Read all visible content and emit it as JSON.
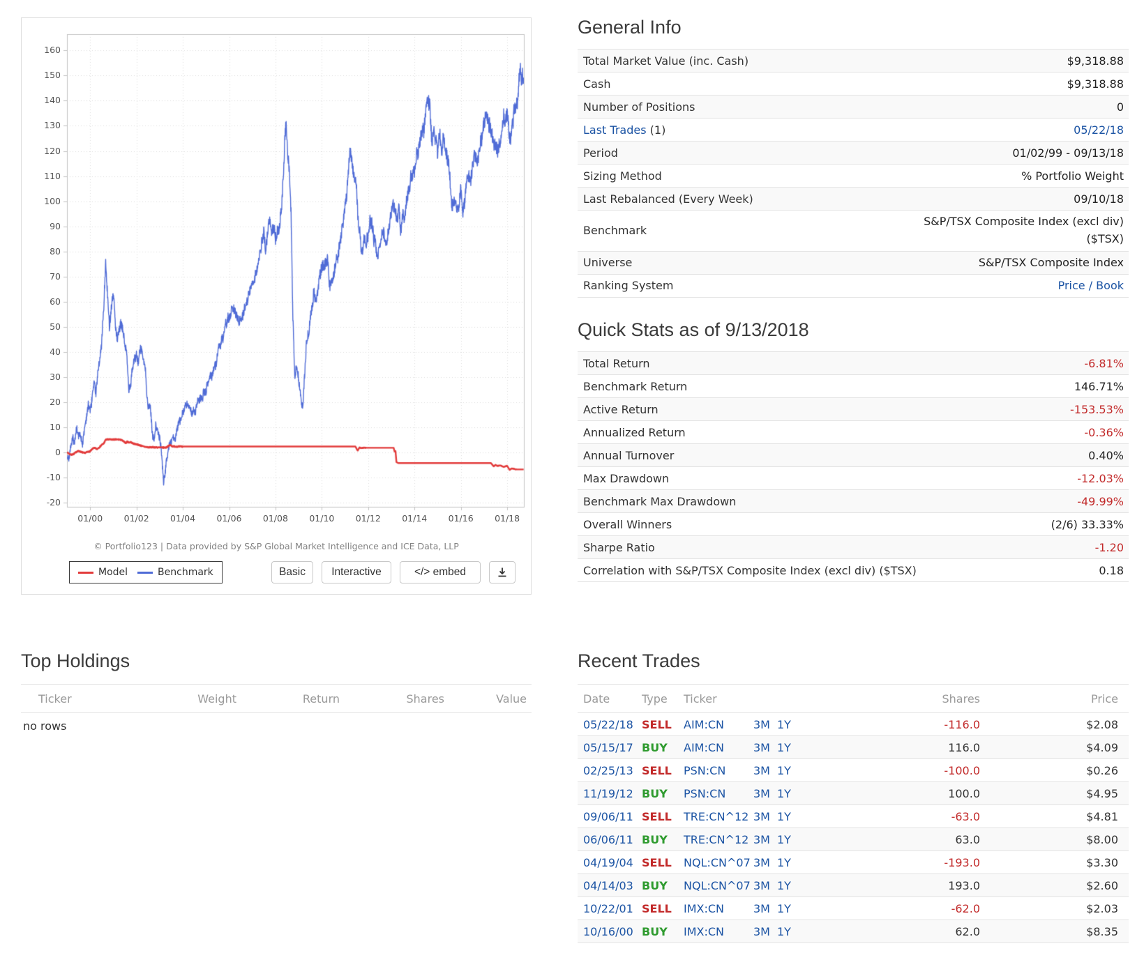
{
  "chart_panel": {
    "copyright": "© Portfolio123 | Data provided by S&P Global Market Intelligence and ICE Data, LLP",
    "legend": [
      {
        "label": "Model",
        "color": "#e23b3b"
      },
      {
        "label": "Benchmark",
        "color": "#4f6bd6"
      }
    ],
    "buttons": {
      "basic": "Basic",
      "interactive": "Interactive",
      "embed": "</> embed"
    }
  },
  "chart_data": {
    "type": "line",
    "title": "",
    "xlabel": "",
    "ylabel": "",
    "grid": true,
    "legend_position": "bottom-left",
    "y_ticks": [
      160,
      150,
      140,
      130,
      120,
      110,
      100,
      90,
      80,
      70,
      60,
      50,
      40,
      30,
      20,
      10,
      0,
      -10,
      -20
    ],
    "x_tick_labels": [
      "01/00",
      "01/02",
      "01/04",
      "01/06",
      "01/08",
      "01/10",
      "01/12",
      "01/14",
      "01/16",
      "01/18"
    ],
    "x_tick_years": [
      2000,
      2002,
      2004,
      2006,
      2008,
      2010,
      2012,
      2014,
      2016,
      2018
    ],
    "x_domain": [
      1999.0,
      2018.72
    ],
    "ylim": [
      -21.7,
      166.5
    ],
    "series": [
      {
        "name": "Model",
        "color": "#e23b3b",
        "x": [
          1999,
          1999.1,
          1999.2,
          1999.3,
          1999.42,
          1999.5,
          1999.6,
          1999.75,
          1999.9,
          2000,
          2000.15,
          2000.3,
          2000.42,
          2000.5,
          2000.58,
          2000.67,
          2000.75,
          2001,
          2001.25,
          2001.35,
          2001.45,
          2001.55,
          2001.6,
          2001.65,
          2001.75,
          2001.85,
          2002,
          2002.15,
          2002.3,
          2002.5,
          2002.75,
          2003,
          2003.28,
          2003.45,
          2003.55,
          2003.7,
          2004.3,
          2011.45,
          2011.55,
          2011.62,
          2011.7,
          2011.8,
          2013.1,
          2013.14,
          2013.18,
          2013.22,
          2013.3,
          2017.3,
          2017.42,
          2017.5,
          2017.58,
          2017.7,
          2017.85,
          2018,
          2018.1,
          2018.2,
          2018.3,
          2018.38,
          2018.71
        ],
        "y": [
          0,
          -0.6,
          -1,
          -0.6,
          0.3,
          0.5,
          0.2,
          -0.3,
          0.2,
          0.4,
          1.8,
          1.3,
          2.2,
          3,
          3.4,
          5,
          5.1,
          5.1,
          5.1,
          4.9,
          4.3,
          3.7,
          4.4,
          3.9,
          4.1,
          3.5,
          3.2,
          2.8,
          2.3,
          2,
          2,
          1.9,
          1.9,
          2.9,
          2.4,
          2.3,
          2.3,
          2.3,
          0.6,
          1.9,
          1.7,
          1.8,
          1.8,
          0.3,
          0.5,
          -3.9,
          -4.3,
          -4.3,
          -5.6,
          -5,
          -5.4,
          -5.2,
          -5.8,
          -5.4,
          -7,
          -6.4,
          -6.6,
          -6.81,
          -6.81
        ]
      },
      {
        "name": "Benchmark",
        "color": "#4f6bd6",
        "x": [
          1999,
          1999.08,
          1999.17,
          1999.25,
          1999.33,
          1999.42,
          1999.5,
          1999.58,
          1999.67,
          1999.75,
          1999.83,
          1999.92,
          2000,
          2000.08,
          2000.17,
          2000.25,
          2000.33,
          2000.42,
          2000.5,
          2000.58,
          2000.67,
          2000.75,
          2000.83,
          2000.92,
          2001,
          2001.08,
          2001.17,
          2001.25,
          2001.33,
          2001.42,
          2001.5,
          2001.58,
          2001.67,
          2001.75,
          2001.83,
          2001.92,
          2002,
          2002.08,
          2002.17,
          2002.25,
          2002.33,
          2002.42,
          2002.5,
          2002.58,
          2002.67,
          2002.75,
          2002.83,
          2002.92,
          2003,
          2003.08,
          2003.17,
          2003.25,
          2003.33,
          2003.42,
          2003.5,
          2003.58,
          2003.67,
          2003.75,
          2003.83,
          2003.92,
          2004,
          2004.17,
          2004.33,
          2004.5,
          2004.67,
          2004.83,
          2005,
          2005.17,
          2005.33,
          2005.5,
          2005.67,
          2005.83,
          2006,
          2006.17,
          2006.33,
          2006.5,
          2006.67,
          2006.83,
          2007,
          2007.17,
          2007.33,
          2007.5,
          2007.58,
          2007.67,
          2007.75,
          2007.83,
          2007.92,
          2008,
          2008.08,
          2008.17,
          2008.25,
          2008.33,
          2008.42,
          2008.46,
          2008.5,
          2008.58,
          2008.67,
          2008.75,
          2008.83,
          2008.92,
          2009,
          2009.08,
          2009.17,
          2009.25,
          2009.33,
          2009.42,
          2009.5,
          2009.58,
          2009.67,
          2009.75,
          2009.83,
          2009.92,
          2010,
          2010.17,
          2010.25,
          2010.33,
          2010.5,
          2010.67,
          2010.83,
          2010.92,
          2011,
          2011.08,
          2011.17,
          2011.25,
          2011.33,
          2011.42,
          2011.5,
          2011.58,
          2011.67,
          2011.75,
          2011.83,
          2011.92,
          2012,
          2012.08,
          2012.17,
          2012.25,
          2012.33,
          2012.42,
          2012.5,
          2012.58,
          2012.67,
          2012.75,
          2012.83,
          2012.92,
          2013,
          2013.08,
          2013.17,
          2013.25,
          2013.33,
          2013.42,
          2013.5,
          2013.58,
          2013.67,
          2013.75,
          2013.83,
          2013.92,
          2014,
          2014.08,
          2014.17,
          2014.25,
          2014.33,
          2014.42,
          2014.5,
          2014.58,
          2014.67,
          2014.75,
          2014.83,
          2014.92,
          2015,
          2015.08,
          2015.17,
          2015.25,
          2015.33,
          2015.42,
          2015.5,
          2015.58,
          2015.67,
          2015.75,
          2015.83,
          2015.92,
          2016,
          2016.08,
          2016.17,
          2016.25,
          2016.33,
          2016.42,
          2016.5,
          2016.58,
          2016.67,
          2016.75,
          2016.83,
          2016.92,
          2017,
          2017.08,
          2017.17,
          2017.25,
          2017.33,
          2017.42,
          2017.5,
          2017.58,
          2017.67,
          2017.75,
          2017.83,
          2017.92,
          2018,
          2018.08,
          2018.17,
          2018.25,
          2018.33,
          2018.42,
          2018.5,
          2018.58,
          2018.63,
          2018.67,
          2018.71
        ],
        "y": [
          0,
          -4,
          3,
          6,
          4,
          9,
          7,
          6,
          4,
          9,
          13,
          20,
          16,
          22,
          28,
          25,
          31,
          38,
          45,
          55,
          75,
          63,
          52,
          58,
          64,
          53,
          44,
          47,
          52,
          49,
          44,
          38,
          24,
          28,
          33,
          37,
          40,
          37,
          41,
          39,
          36,
          28,
          17,
          20,
          9,
          4,
          10,
          8,
          6,
          0,
          -12,
          -7,
          -2,
          2,
          4,
          7,
          5,
          9,
          11,
          14,
          16,
          19,
          17,
          16,
          20,
          22,
          25,
          29,
          33,
          39,
          45,
          49,
          54,
          58,
          54,
          52,
          57,
          63,
          68,
          72,
          80,
          88,
          80,
          86,
          94,
          87,
          90,
          83,
          90,
          88,
          97,
          108,
          125,
          132,
          120,
          113,
          98,
          55,
          30,
          33,
          28,
          22,
          16,
          30,
          42,
          47,
          52,
          58,
          64,
          61,
          67,
          70,
          72,
          75,
          78,
          68,
          70,
          77,
          86,
          92,
          98,
          104,
          118,
          121,
          113,
          109,
          106,
          92,
          84,
          78,
          86,
          82,
          88,
          93,
          90,
          86,
          80,
          77,
          82,
          86,
          89,
          85,
          87,
          90,
          95,
          100,
          97,
          92,
          96,
          88,
          93,
          95,
          99,
          103,
          108,
          112,
          110,
          117,
          120,
          123,
          126,
          130,
          135,
          141,
          136,
          122,
          129,
          123,
          118,
          126,
          121,
          125,
          123,
          116,
          112,
          101,
          96,
          101,
          98,
          97,
          104,
          95,
          99,
          108,
          112,
          110,
          114,
          116,
          117,
          120,
          122,
          127,
          130,
          132,
          133,
          130,
          127,
          124,
          122,
          120,
          123,
          127,
          131,
          134,
          138,
          128,
          125,
          131,
          137,
          140,
          146,
          153,
          148,
          152,
          146.7
        ]
      }
    ]
  },
  "general_info": {
    "title": "General Info",
    "rows": [
      {
        "label": "Total Market Value (inc. Cash)",
        "value": "$9,318.88"
      },
      {
        "label": "Cash",
        "value": "$9,318.88"
      },
      {
        "label": "Number of Positions",
        "value": "0"
      },
      {
        "label_link": "Last Trades",
        "label_suffix": " (1)",
        "value": "05/22/18"
      },
      {
        "label": "Period",
        "value": "01/02/99 - 09/13/18"
      },
      {
        "label": "Sizing Method",
        "value": "% Portfolio Weight"
      },
      {
        "label": "Last Rebalanced (Every Week)",
        "value": "09/10/18"
      },
      {
        "label": "Benchmark",
        "value_line1": "S&P/TSX Composite Index (excl div)",
        "value_line2": "($TSX)"
      },
      {
        "label": "Universe",
        "value": "S&P/TSX Composite Index"
      },
      {
        "label": "Ranking System",
        "value": "Price / Book"
      }
    ]
  },
  "quick_stats": {
    "title": "Quick Stats as of 9/13/2018",
    "rows": [
      {
        "label": "Total Return",
        "value": "-6.81%"
      },
      {
        "label": "Benchmark Return",
        "value": "146.71%"
      },
      {
        "label": "Active Return",
        "value": "-153.53%"
      },
      {
        "label": "Annualized Return",
        "value": "-0.36%"
      },
      {
        "label": "Annual Turnover",
        "value": "0.40%"
      },
      {
        "label": "Max Drawdown",
        "value": "-12.03%"
      },
      {
        "label": "Benchmark Max Drawdown",
        "value": "-49.99%"
      },
      {
        "label": "Overall Winners",
        "value": "(2/6) 33.33%"
      },
      {
        "label": "Sharpe Ratio",
        "value": "-1.20"
      },
      {
        "label": "Correlation with S&P/TSX Composite Index (excl div) ($TSX)",
        "value": "0.18"
      }
    ]
  },
  "top_holdings": {
    "title": "Top Holdings",
    "headers": [
      "Ticker",
      "Weight",
      "Return",
      "Shares",
      "Value"
    ],
    "empty_text": "no rows"
  },
  "recent_trades": {
    "title": "Recent Trades",
    "headers": {
      "date": "Date",
      "type": "Type",
      "ticker": "Ticker",
      "shares": "Shares",
      "price": "Price"
    },
    "rows": [
      {
        "date": "05/22/18",
        "type": "SELL",
        "ticker": "AIM:CN",
        "links": [
          "3M",
          "1Y"
        ],
        "shares": "-116.0",
        "price": "$2.08"
      },
      {
        "date": "05/15/17",
        "type": "BUY",
        "ticker": "AIM:CN",
        "links": [
          "3M",
          "1Y"
        ],
        "shares": "116.0",
        "price": "$4.09"
      },
      {
        "date": "02/25/13",
        "type": "SELL",
        "ticker": "PSN:CN",
        "links": [
          "3M",
          "1Y"
        ],
        "shares": "-100.0",
        "price": "$0.26"
      },
      {
        "date": "11/19/12",
        "type": "BUY",
        "ticker": "PSN:CN",
        "links": [
          "3M",
          "1Y"
        ],
        "shares": "100.0",
        "price": "$4.95"
      },
      {
        "date": "09/06/11",
        "type": "SELL",
        "ticker": "TRE:CN^12",
        "links": [
          "3M",
          "1Y"
        ],
        "shares": "-63.0",
        "price": "$4.81"
      },
      {
        "date": "06/06/11",
        "type": "BUY",
        "ticker": "TRE:CN^12",
        "links": [
          "3M",
          "1Y"
        ],
        "shares": "63.0",
        "price": "$8.00"
      },
      {
        "date": "04/19/04",
        "type": "SELL",
        "ticker": "NQL:CN^07",
        "links": [
          "3M",
          "1Y"
        ],
        "shares": "-193.0",
        "price": "$3.30"
      },
      {
        "date": "04/14/03",
        "type": "BUY",
        "ticker": "NQL:CN^07",
        "links": [
          "3M",
          "1Y"
        ],
        "shares": "193.0",
        "price": "$2.60"
      },
      {
        "date": "10/22/01",
        "type": "SELL",
        "ticker": "IMX:CN",
        "links": [
          "3M",
          "1Y"
        ],
        "shares": "-62.0",
        "price": "$2.03"
      },
      {
        "date": "10/16/00",
        "type": "BUY",
        "ticker": "IMX:CN",
        "links": [
          "3M",
          "1Y"
        ],
        "shares": "62.0",
        "price": "$8.35"
      }
    ]
  },
  "colors": {
    "link": "#1c54a4",
    "negative": "#c22a2a",
    "buy_green": "#2f9b2f",
    "model_line": "#e23b3b",
    "benchmark_line": "#4f6bd6"
  }
}
